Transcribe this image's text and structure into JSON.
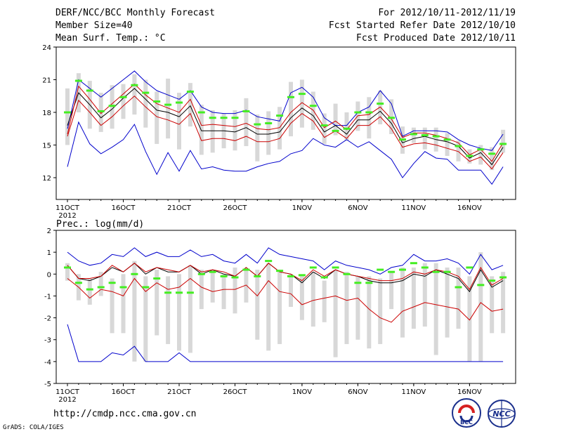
{
  "header": {
    "title": "DERF/NCC/BCC Monthly Forecast",
    "member_size": "Member Size=40",
    "variable": "Mean Surf. Temp.: °C",
    "forecast_period": "For 2012/10/11-2012/11/19",
    "start_refer_date": "Fcst Started Refer Date 2012/10/10",
    "produced_date": "Fcst Produced Date 2012/10/11"
  },
  "footer": {
    "url": "http://cmdp.ncc.cma.gov.cn",
    "credit": "GrADS: COLA/IGES",
    "logo_left_text": "BCC",
    "logo_right_text": "NCC"
  },
  "colors": {
    "envelope": "#0000cc",
    "mean": "#000000",
    "lower": "#cc0000",
    "bar": "#d8d8d8",
    "observed": "#44ee22"
  },
  "chart_data": [
    {
      "type": "line",
      "title": "Mean Surf. Temp.: °C",
      "ylabel": "°C",
      "ylim": [
        10,
        24
      ],
      "yticks": [
        12,
        15,
        18,
        21,
        24
      ],
      "x_count": 40,
      "xticks": [
        {
          "i": 0,
          "label": "11OCT",
          "sub": "2012"
        },
        {
          "i": 5,
          "label": "16OCT"
        },
        {
          "i": 10,
          "label": "21OCT"
        },
        {
          "i": 15,
          "label": "26OCT"
        },
        {
          "i": 21,
          "label": "1NOV"
        },
        {
          "i": 26,
          "label": "6NOV"
        },
        {
          "i": 31,
          "label": "11NOV"
        },
        {
          "i": 36,
          "label": "16NOV"
        }
      ],
      "series": [
        {
          "name": "max",
          "color": "#0000cc",
          "values": [
            16.5,
            21.0,
            20.2,
            19.4,
            20.2,
            21.0,
            21.8,
            20.8,
            20.0,
            19.6,
            19.2,
            20.0,
            18.5,
            18.0,
            17.9,
            17.9,
            18.2,
            17.6,
            17.4,
            17.2,
            19.8,
            20.3,
            19.4,
            17.5,
            16.8,
            16.8,
            18.0,
            18.5,
            20.0,
            18.8,
            15.8,
            16.3,
            16.3,
            16.3,
            16.2,
            15.5,
            15.0,
            14.7,
            14.5,
            16.0
          ]
        },
        {
          "name": "mean",
          "color": "#000000",
          "values": [
            16.8,
            19.8,
            18.7,
            17.5,
            18.3,
            19.3,
            20.2,
            19.2,
            18.2,
            18.0,
            17.6,
            18.6,
            16.3,
            16.3,
            16.3,
            16.2,
            16.6,
            16.0,
            16.0,
            16.2,
            17.5,
            18.4,
            17.7,
            16.2,
            16.8,
            16.0,
            17.3,
            17.3,
            18.1,
            17.0,
            15.2,
            15.6,
            15.8,
            15.5,
            15.3,
            14.9,
            13.8,
            14.3,
            13.2,
            14.8
          ]
        },
        {
          "name": "upper",
          "color": "#cc0000",
          "values": [
            16.0,
            20.4,
            19.2,
            17.9,
            18.8,
            19.7,
            20.6,
            19.6,
            18.8,
            18.4,
            18.0,
            19.2,
            16.8,
            16.9,
            16.8,
            16.7,
            17.0,
            16.5,
            16.4,
            16.6,
            18.0,
            18.9,
            18.2,
            16.6,
            17.2,
            16.4,
            17.7,
            17.8,
            18.5,
            17.4,
            15.7,
            16.1,
            16.1,
            15.9,
            15.6,
            15.2,
            14.1,
            14.6,
            13.5,
            15.2
          ]
        },
        {
          "name": "lower",
          "color": "#cc0000",
          "values": [
            15.8,
            19.1,
            18.0,
            16.8,
            17.6,
            18.6,
            19.5,
            18.5,
            17.6,
            17.3,
            16.9,
            17.9,
            15.4,
            15.6,
            15.6,
            15.4,
            15.8,
            15.3,
            15.3,
            15.6,
            17.0,
            17.9,
            17.2,
            15.7,
            16.3,
            15.6,
            16.8,
            16.8,
            17.6,
            16.5,
            14.8,
            15.1,
            15.2,
            15.0,
            14.7,
            14.4,
            13.5,
            13.9,
            12.8,
            14.3
          ]
        },
        {
          "name": "min",
          "color": "#0000cc",
          "values": [
            13.0,
            17.1,
            15.1,
            14.2,
            14.8,
            15.5,
            16.9,
            14.4,
            12.3,
            14.3,
            12.6,
            14.5,
            12.8,
            13.0,
            12.7,
            12.6,
            12.6,
            13.0,
            13.3,
            13.5,
            14.2,
            14.5,
            15.6,
            15.0,
            14.8,
            15.5,
            14.8,
            15.3,
            14.5,
            13.7,
            12.0,
            13.3,
            14.4,
            13.8,
            13.7,
            12.7,
            12.7,
            12.7,
            11.4,
            13.0
          ]
        }
      ],
      "bars": [
        {
          "lo": 15.0,
          "hi": 20.2
        },
        {
          "lo": 18.0,
          "hi": 21.6
        },
        {
          "lo": 16.5,
          "hi": 20.9
        },
        {
          "lo": 16.2,
          "hi": 19.8
        },
        {
          "lo": 16.5,
          "hi": 20.5
        },
        {
          "lo": 17.4,
          "hi": 20.6
        },
        {
          "lo": 17.8,
          "hi": 21.5
        },
        {
          "lo": 16.6,
          "hi": 21.0
        },
        {
          "lo": 15.1,
          "hi": 19.9
        },
        {
          "lo": 15.6,
          "hi": 21.1
        },
        {
          "lo": 14.6,
          "hi": 19.8
        },
        {
          "lo": 16.7,
          "hi": 20.7
        },
        {
          "lo": 14.1,
          "hi": 18.7
        },
        {
          "lo": 14.3,
          "hi": 18.2
        },
        {
          "lo": 14.7,
          "hi": 17.9
        },
        {
          "lo": 14.5,
          "hi": 18.2
        },
        {
          "lo": 14.9,
          "hi": 19.3
        },
        {
          "lo": 13.5,
          "hi": 17.8
        },
        {
          "lo": 14.1,
          "hi": 18.1
        },
        {
          "lo": 14.6,
          "hi": 18.5
        },
        {
          "lo": 15.8,
          "hi": 20.8
        },
        {
          "lo": 16.6,
          "hi": 21.0
        },
        {
          "lo": 16.4,
          "hi": 19.9
        },
        {
          "lo": 15.1,
          "hi": 17.9
        },
        {
          "lo": 15.9,
          "hi": 18.8
        },
        {
          "lo": 15.4,
          "hi": 18.0
        },
        {
          "lo": 16.3,
          "hi": 19.0
        },
        {
          "lo": 15.6,
          "hi": 19.4
        },
        {
          "lo": 16.9,
          "hi": 20.0
        },
        {
          "lo": 16.0,
          "hi": 19.2
        },
        {
          "lo": 14.2,
          "hi": 16.7
        },
        {
          "lo": 15.2,
          "hi": 16.6
        },
        {
          "lo": 14.6,
          "hi": 16.6
        },
        {
          "lo": 14.4,
          "hi": 16.6
        },
        {
          "lo": 14.0,
          "hi": 16.1
        },
        {
          "lo": 13.5,
          "hi": 15.4
        },
        {
          "lo": 13.3,
          "hi": 14.6
        },
        {
          "lo": 13.2,
          "hi": 15.0
        },
        {
          "lo": 12.7,
          "hi": 14.8
        },
        {
          "lo": 14.3,
          "hi": 16.4
        }
      ],
      "observed": [
        18.0,
        20.9,
        20.0,
        18.1,
        18.6,
        19.4,
        20.5,
        19.8,
        19.0,
        18.7,
        18.9,
        19.9,
        18.0,
        17.5,
        17.5,
        17.5,
        18.1,
        16.9,
        17.0,
        17.7,
        19.4,
        19.7,
        18.6,
        16.8,
        16.3,
        16.5,
        18.0,
        18.0,
        18.8,
        17.5,
        15.5,
        16.0,
        15.9,
        15.8,
        15.5,
        14.9,
        14.0,
        14.6,
        14.2,
        15.1
      ]
    },
    {
      "type": "line",
      "title": "Prec.: log(mm/d)",
      "ylabel": "log(mm/d)",
      "ylim": [
        -5,
        2
      ],
      "yticks": [
        -5,
        -4,
        -3,
        -2,
        -1,
        0,
        1,
        2
      ],
      "x_count": 40,
      "xticks": [
        {
          "i": 0,
          "label": "11OCT",
          "sub": "2012"
        },
        {
          "i": 5,
          "label": "16OCT"
        },
        {
          "i": 10,
          "label": "21OCT"
        },
        {
          "i": 15,
          "label": "26OCT"
        },
        {
          "i": 21,
          "label": "1NOV"
        },
        {
          "i": 26,
          "label": "6NOV"
        },
        {
          "i": 31,
          "label": "11NOV"
        },
        {
          "i": 36,
          "label": "16NOV"
        }
      ],
      "series": [
        {
          "name": "max",
          "color": "#0000cc",
          "values": [
            1.0,
            0.6,
            0.4,
            0.5,
            0.9,
            0.8,
            1.2,
            0.8,
            1.0,
            0.8,
            0.8,
            1.1,
            0.8,
            0.9,
            0.6,
            0.5,
            0.9,
            0.5,
            1.2,
            0.9,
            0.8,
            0.7,
            0.6,
            0.2,
            0.6,
            0.4,
            0.3,
            0.2,
            0.0,
            0.3,
            0.4,
            0.9,
            0.6,
            0.6,
            0.7,
            0.5,
            0.0,
            0.9,
            0.2,
            0.4
          ]
        },
        {
          "name": "mean",
          "color": "#000000",
          "values": [
            0.4,
            -0.2,
            -0.3,
            -0.1,
            0.3,
            0.1,
            0.5,
            0.0,
            0.3,
            0.1,
            0.1,
            0.4,
            0.0,
            0.2,
            0.0,
            -0.1,
            0.3,
            -0.1,
            0.5,
            0.1,
            0.0,
            -0.4,
            0.1,
            -0.2,
            0.2,
            0.0,
            -0.1,
            -0.3,
            -0.4,
            -0.4,
            -0.3,
            0.0,
            -0.1,
            0.2,
            0.0,
            -0.2,
            -0.8,
            0.2,
            -0.6,
            -0.3
          ]
        },
        {
          "name": "upper",
          "color": "#cc0000",
          "values": [
            0.4,
            -0.2,
            -0.2,
            -0.1,
            0.4,
            0.1,
            0.5,
            0.1,
            0.3,
            0.2,
            0.1,
            0.4,
            0.1,
            0.2,
            0.1,
            -0.1,
            0.3,
            -0.1,
            0.5,
            0.1,
            0.0,
            -0.3,
            0.2,
            -0.1,
            0.2,
            0.0,
            -0.1,
            -0.2,
            -0.3,
            -0.3,
            -0.2,
            0.1,
            0.0,
            0.2,
            0.1,
            -0.1,
            -0.7,
            0.3,
            -0.5,
            -0.2
          ]
        },
        {
          "name": "lower",
          "color": "#cc0000",
          "values": [
            -0.2,
            -0.6,
            -1.1,
            -0.7,
            -0.8,
            -1.0,
            -0.2,
            -0.8,
            -0.4,
            -0.7,
            -0.6,
            -0.2,
            -0.6,
            -0.8,
            -0.7,
            -0.7,
            -0.5,
            -1.0,
            -0.3,
            -0.8,
            -0.9,
            -1.4,
            -1.2,
            -1.1,
            -1.0,
            -1.2,
            -1.1,
            -1.6,
            -2.0,
            -2.2,
            -1.7,
            -1.5,
            -1.3,
            -1.4,
            -1.5,
            -1.6,
            -2.1,
            -1.3,
            -1.7,
            -1.6
          ]
        },
        {
          "name": "min",
          "color": "#0000cc",
          "values": [
            -2.3,
            -4.0,
            -4.0,
            -4.0,
            -3.6,
            -3.7,
            -3.3,
            -4.0,
            -4.0,
            -4.0,
            -3.6,
            -4.0,
            -4.0,
            -4.0,
            -4.0,
            -4.0,
            -4.0,
            -4.0,
            -4.0,
            -4.0,
            -4.0,
            -4.0,
            -4.0,
            -4.0,
            -4.0,
            -4.0,
            -4.0,
            -4.0,
            -4.0,
            -4.0,
            -4.0,
            -4.0,
            -4.0,
            -4.0,
            -4.0,
            -4.0,
            -4.0,
            -4.0,
            -4.0,
            -4.0
          ]
        }
      ],
      "bars": [
        {
          "lo": -0.3,
          "hi": 0.5
        },
        {
          "lo": -1.2,
          "hi": 0.0
        },
        {
          "lo": -1.4,
          "hi": -0.2
        },
        {
          "lo": -1.0,
          "hi": 0.1
        },
        {
          "lo": -2.7,
          "hi": -0.2
        },
        {
          "lo": -2.7,
          "hi": 0.0
        },
        {
          "lo": -4.0,
          "hi": 0.6
        },
        {
          "lo": -4.0,
          "hi": -0.1
        },
        {
          "lo": -2.8,
          "hi": 0.2
        },
        {
          "lo": -3.2,
          "hi": -0.1
        },
        {
          "lo": -3.5,
          "hi": 0.0
        },
        {
          "lo": -3.6,
          "hi": 0.4
        },
        {
          "lo": -1.6,
          "hi": 0.2
        },
        {
          "lo": -1.3,
          "hi": 0.2
        },
        {
          "lo": -1.6,
          "hi": 0.0
        },
        {
          "lo": -1.8,
          "hi": 0.3
        },
        {
          "lo": -1.3,
          "hi": 0.2
        },
        {
          "lo": -3.0,
          "hi": 0.2
        },
        {
          "lo": -3.5,
          "hi": 0.5
        },
        {
          "lo": -3.2,
          "hi": 0.2
        },
        {
          "lo": -1.5,
          "hi": 0.0
        },
        {
          "lo": -2.1,
          "hi": -0.1
        },
        {
          "lo": -2.4,
          "hi": 0.1
        },
        {
          "lo": -2.2,
          "hi": -0.3
        },
        {
          "lo": -3.8,
          "hi": 0.2
        },
        {
          "lo": -3.2,
          "hi": 0.1
        },
        {
          "lo": -3.0,
          "hi": -0.1
        },
        {
          "lo": -3.4,
          "hi": -0.1
        },
        {
          "lo": -3.2,
          "hi": -0.2
        },
        {
          "lo": -1.6,
          "hi": 0.1
        },
        {
          "lo": -2.9,
          "hi": 0.3
        },
        {
          "lo": -2.5,
          "hi": 0.3
        },
        {
          "lo": -2.4,
          "hi": 0.5
        },
        {
          "lo": -3.7,
          "hi": 0.5
        },
        {
          "lo": -2.9,
          "hi": 0.3
        },
        {
          "lo": -2.5,
          "hi": 0.3
        },
        {
          "lo": -4.0,
          "hi": -0.1
        },
        {
          "lo": -4.0,
          "hi": 1.0
        },
        {
          "lo": -2.7,
          "hi": -0.1
        },
        {
          "lo": -2.7,
          "hi": 0.1
        }
      ],
      "observed": [
        0.3,
        -0.4,
        -0.7,
        -0.6,
        -0.4,
        -0.6,
        0.0,
        -0.6,
        -0.2,
        -0.85,
        -0.85,
        -0.85,
        0.0,
        0.1,
        -0.1,
        -0.15,
        0.2,
        -0.1,
        0.6,
        0.15,
        -0.1,
        -0.05,
        0.3,
        -0.15,
        0.3,
        0.0,
        -0.4,
        -0.4,
        0.2,
        0.1,
        0.2,
        0.5,
        0.3,
        0.1,
        0.1,
        -0.6,
        0.3,
        -0.5,
        -0.3,
        -0.15
      ]
    }
  ]
}
